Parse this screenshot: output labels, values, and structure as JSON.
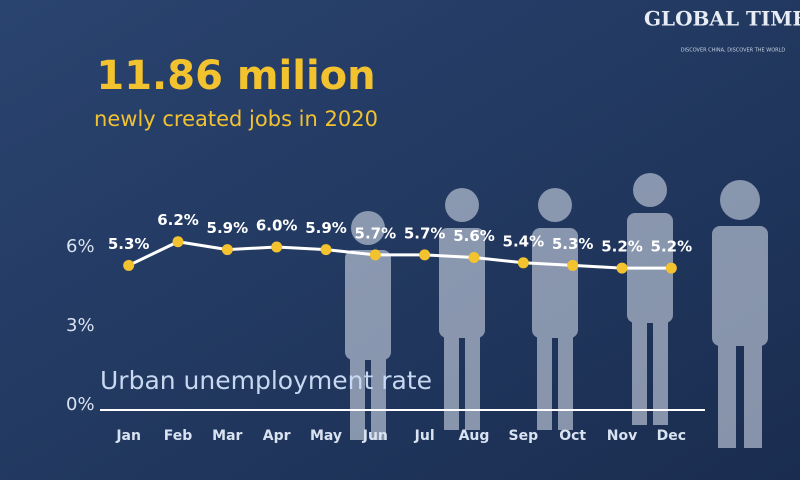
{
  "logo": {
    "name": "GLOBAL TIMES",
    "tagline": "DISCOVER CHINA, DISCOVER THE WORLD"
  },
  "chart_data": {
    "type": "line",
    "title": "11.86 milion",
    "subtitle": "newly created jobs in 2020",
    "annotation": "Urban unemployment rate",
    "categories": [
      "Jan",
      "Feb",
      "Mar",
      "Apr",
      "May",
      "Jun",
      "Jul",
      "Aug",
      "Sep",
      "Oct",
      "Nov",
      "Dec"
    ],
    "values": [
      5.3,
      6.2,
      5.9,
      6.0,
      5.9,
      5.7,
      5.7,
      5.6,
      5.4,
      5.3,
      5.2,
      5.2
    ],
    "value_labels": [
      "5.3%",
      "6.2%",
      "5.9%",
      "6.0%",
      "5.9%",
      "5.7%",
      "5.7%",
      "5.6%",
      "5.4%",
      "5.3%",
      "5.2%",
      "5.2%"
    ],
    "color": "#f3c22f",
    "line_color": "#ffffff",
    "ylim": [
      0,
      7.5
    ],
    "yticks": [
      {
        "value": 0,
        "label": "0%"
      },
      {
        "value": 3,
        "label": "3%"
      },
      {
        "value": 6,
        "label": "6%"
      }
    ],
    "grid": false
  }
}
